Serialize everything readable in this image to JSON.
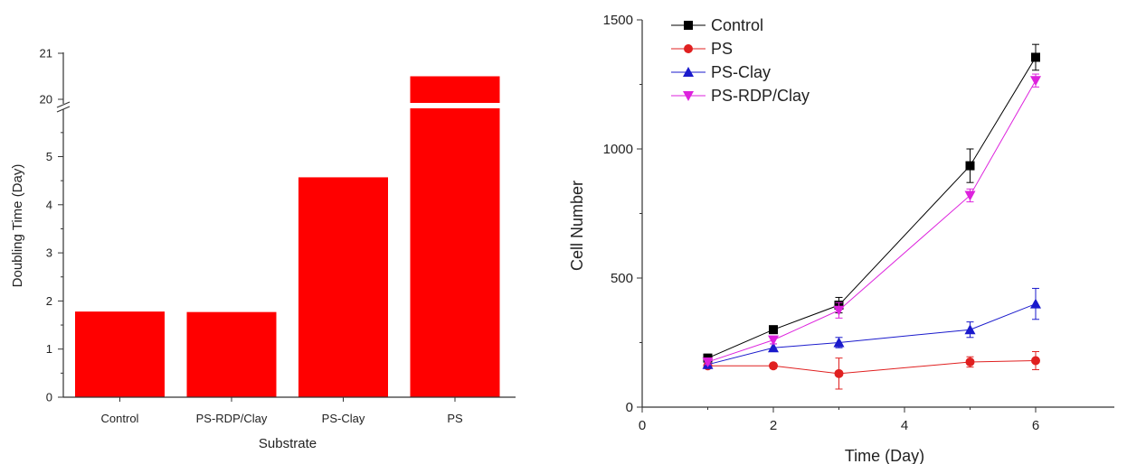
{
  "chart_data": [
    {
      "type": "bar",
      "xlabel": "Substrate",
      "ylabel": "Doubling Time (Day)",
      "categories": [
        "Control",
        "PS-RDP/Clay",
        "PS-Clay",
        "PS"
      ],
      "values": [
        1.78,
        1.77,
        4.57,
        20.5
      ],
      "axis_break": {
        "lower_range": [
          0,
          5.9
        ],
        "upper_range": [
          19.8,
          21
        ]
      },
      "lower_ticks": [
        0,
        1,
        2,
        3,
        4,
        5
      ],
      "upper_ticks": [
        20,
        21
      ],
      "bar_color": "#ff0000",
      "grid": false
    },
    {
      "type": "line",
      "xlabel": "Time (Day)",
      "ylabel": "Cell Number",
      "xlim": [
        0,
        7.2
      ],
      "ylim": [
        0,
        1500
      ],
      "xticks": [
        0,
        2,
        4,
        6
      ],
      "yticks": [
        0,
        500,
        1000,
        1500
      ],
      "legend_position": "top-left",
      "grid": false,
      "series": [
        {
          "name": "Control",
          "color": "#000000",
          "marker": "square",
          "x": [
            1,
            2,
            3,
            5,
            6
          ],
          "y": [
            190,
            300,
            395,
            935,
            1355
          ],
          "err": [
            15,
            15,
            30,
            65,
            50
          ]
        },
        {
          "name": "PS",
          "color": "#e02020",
          "marker": "circle",
          "x": [
            1,
            2,
            3,
            5,
            6
          ],
          "y": [
            160,
            160,
            130,
            175,
            180
          ],
          "err": [
            10,
            10,
            60,
            20,
            35
          ]
        },
        {
          "name": "PS-Clay",
          "color": "#1a1acc",
          "marker": "triangle-up",
          "x": [
            1,
            2,
            3,
            5,
            6
          ],
          "y": [
            165,
            230,
            250,
            300,
            400
          ],
          "err": [
            10,
            15,
            20,
            30,
            60
          ]
        },
        {
          "name": "PS-RDP/Clay",
          "color": "#dd22dd",
          "marker": "triangle-down",
          "x": [
            1,
            2,
            3,
            5,
            6
          ],
          "y": [
            175,
            260,
            375,
            820,
            1265
          ],
          "err": [
            10,
            15,
            30,
            25,
            25
          ]
        }
      ]
    }
  ]
}
